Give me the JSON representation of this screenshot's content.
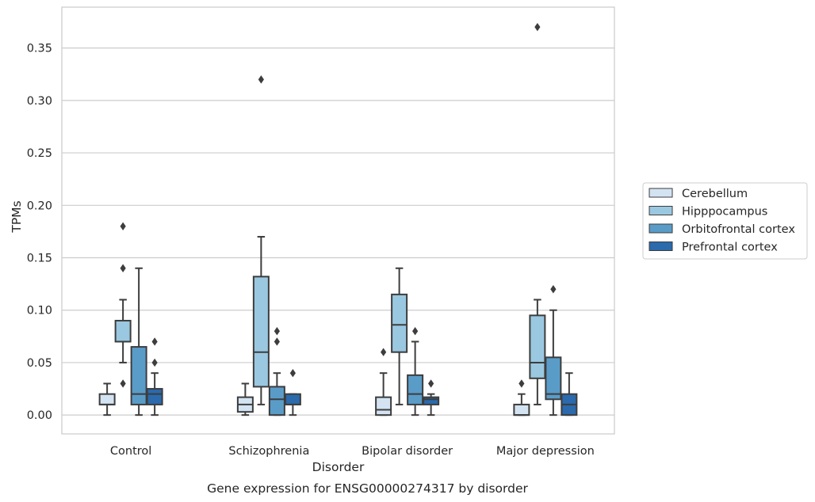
{
  "chart_data": {
    "type": "box",
    "title": "",
    "caption": "Gene expression for ENSG00000274317 by disorder",
    "xlabel": "Disorder",
    "ylabel": "TPMs",
    "ylim": [
      -0.018,
      0.389
    ],
    "yticks": [
      0.0,
      0.05,
      0.1,
      0.15,
      0.2,
      0.25,
      0.3,
      0.35
    ],
    "ytick_labels": [
      "0.00",
      "0.05",
      "0.10",
      "0.15",
      "0.20",
      "0.25",
      "0.30",
      "0.35"
    ],
    "grid": "horizontal",
    "legend_position": "right",
    "categories": [
      "Control",
      "Schizophrenia",
      "Bipolar disorder",
      "Major depression"
    ],
    "series": [
      {
        "name": "Cerebellum",
        "color": "#d3e3f2",
        "boxes": [
          {
            "whislo": 0.0,
            "q1": 0.01,
            "med": 0.01,
            "q3": 0.02,
            "whishi": 0.03,
            "fliers": []
          },
          {
            "whislo": 0.0,
            "q1": 0.003,
            "med": 0.01,
            "q3": 0.017,
            "whishi": 0.03,
            "fliers": []
          },
          {
            "whislo": 0.0,
            "q1": 0.0,
            "med": 0.005,
            "q3": 0.017,
            "whishi": 0.04,
            "fliers": [
              0.06
            ]
          },
          {
            "whislo": 0.0,
            "q1": 0.0,
            "med": 0.0,
            "q3": 0.01,
            "whishi": 0.02,
            "fliers": [
              0.03
            ]
          }
        ]
      },
      {
        "name": "Hipppocampus",
        "color": "#9ac8e0",
        "boxes": [
          {
            "whislo": 0.05,
            "q1": 0.07,
            "med": 0.07,
            "q3": 0.09,
            "whishi": 0.11,
            "fliers": [
              0.03,
              0.14,
              0.18
            ]
          },
          {
            "whislo": 0.01,
            "q1": 0.027,
            "med": 0.06,
            "q3": 0.132,
            "whishi": 0.17,
            "fliers": [
              0.32
            ]
          },
          {
            "whislo": 0.01,
            "q1": 0.06,
            "med": 0.086,
            "q3": 0.115,
            "whishi": 0.14,
            "fliers": []
          },
          {
            "whislo": 0.01,
            "q1": 0.035,
            "med": 0.05,
            "q3": 0.095,
            "whishi": 0.11,
            "fliers": [
              0.37
            ]
          }
        ]
      },
      {
        "name": "Orbitofrontal cortex",
        "color": "#5a9cc8",
        "boxes": [
          {
            "whislo": 0.0,
            "q1": 0.01,
            "med": 0.02,
            "q3": 0.065,
            "whishi": 0.14,
            "fliers": []
          },
          {
            "whislo": 0.0,
            "q1": 0.0,
            "med": 0.015,
            "q3": 0.027,
            "whishi": 0.04,
            "fliers": [
              0.07,
              0.08
            ]
          },
          {
            "whislo": 0.0,
            "q1": 0.01,
            "med": 0.02,
            "q3": 0.038,
            "whishi": 0.07,
            "fliers": [
              0.08
            ]
          },
          {
            "whislo": 0.0,
            "q1": 0.015,
            "med": 0.02,
            "q3": 0.055,
            "whishi": 0.1,
            "fliers": [
              0.12
            ]
          }
        ]
      },
      {
        "name": "Prefrontal cortex",
        "color": "#2a6aad",
        "boxes": [
          {
            "whislo": 0.0,
            "q1": 0.01,
            "med": 0.02,
            "q3": 0.025,
            "whishi": 0.04,
            "fliers": [
              0.05,
              0.07
            ]
          },
          {
            "whislo": 0.0,
            "q1": 0.01,
            "med": 0.01,
            "q3": 0.02,
            "whishi": 0.02,
            "fliers": [
              0.04
            ]
          },
          {
            "whislo": 0.0,
            "q1": 0.01,
            "med": 0.015,
            "q3": 0.017,
            "whishi": 0.02,
            "fliers": [
              0.03
            ]
          },
          {
            "whislo": 0.0,
            "q1": 0.0,
            "med": 0.01,
            "q3": 0.02,
            "whishi": 0.04,
            "fliers": []
          }
        ]
      }
    ]
  }
}
